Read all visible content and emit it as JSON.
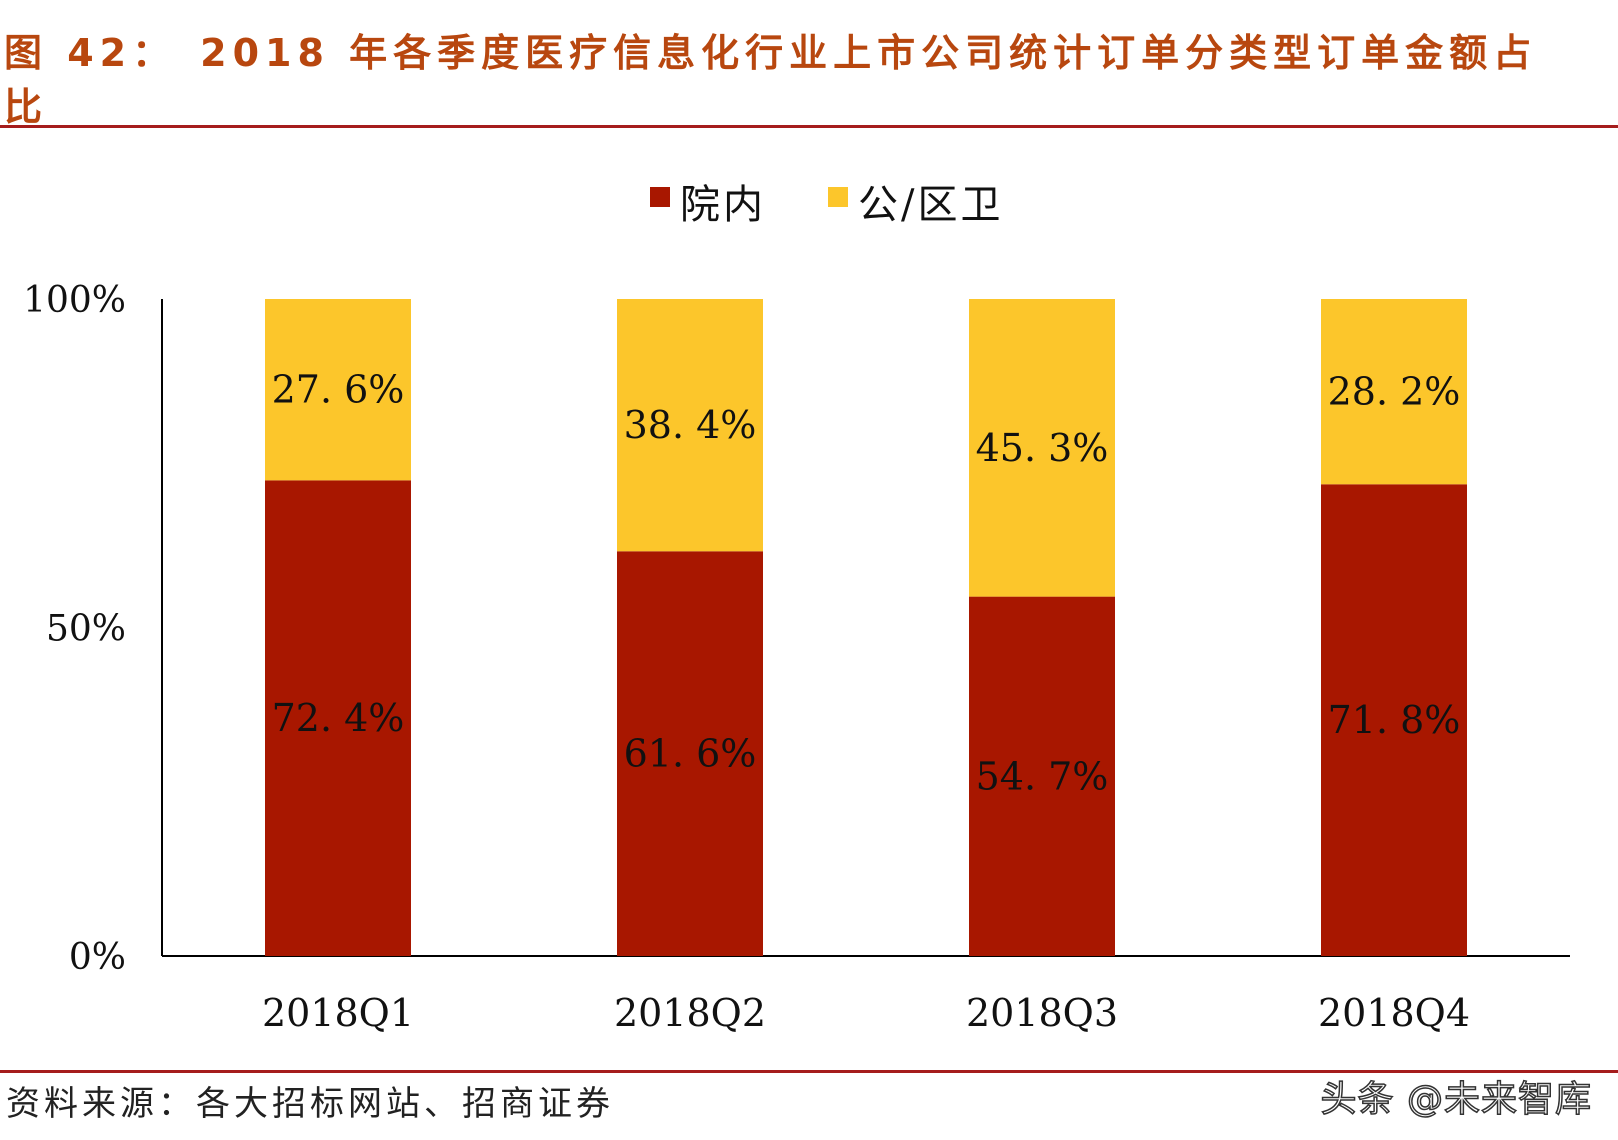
{
  "header": {
    "figure_label": "图 42：",
    "title_line1": "2018 年各季度医疗信息化行业上市公司统计订单分类型订单金额占",
    "title_line2": "比"
  },
  "chart_data": {
    "type": "bar",
    "stacked": true,
    "categories": [
      "2018Q1",
      "2018Q2",
      "2018Q3",
      "2018Q4"
    ],
    "series": [
      {
        "name": "院内",
        "values": [
          72.4,
          61.6,
          54.7,
          71.8
        ],
        "labels": [
          "72. 4%",
          "61. 6%",
          "54. 7%",
          "71. 8%"
        ],
        "color": "#a81700"
      },
      {
        "name": "公/区卫",
        "values": [
          27.6,
          38.4,
          45.3,
          28.2
        ],
        "labels": [
          "27. 6%",
          "38. 4%",
          "45. 3%",
          "28. 2%"
        ],
        "color": "#fcc62b"
      }
    ],
    "yticks": [
      "0%",
      "50%",
      "100%"
    ],
    "ylim": [
      0,
      100
    ],
    "legend": "top-center",
    "grid": false
  },
  "footer": {
    "source": "资料来源：各大招标网站、招商证券",
    "watermark": "头条 @未来智库"
  }
}
